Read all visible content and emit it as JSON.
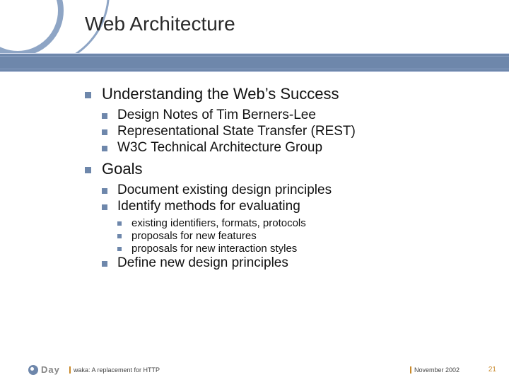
{
  "colors": {
    "accent": "#6e87ab",
    "accent_light": "#8ea5c5",
    "orange": "#c9892a",
    "background": "#ffffff",
    "text": "#111111",
    "logo_gray": "#868686"
  },
  "typography": {
    "font_family": "Verdana, Geneva, sans-serif",
    "title_fontsize": 28,
    "l1_fontsize": 22,
    "l2_fontsize": 19,
    "l3_fontsize": 15,
    "footer_fontsize": 9
  },
  "title": "Web Architecture",
  "bullets": [
    {
      "text": "Understanding the Web’s Success",
      "children": [
        {
          "text": "Design Notes of Tim Berners-Lee"
        },
        {
          "text": "Representational State Transfer (REST)"
        },
        {
          "text": "W3C Technical Architecture Group"
        }
      ]
    },
    {
      "text": "Goals",
      "children": [
        {
          "text": "Document existing design principles"
        },
        {
          "text": "Identify methods for evaluating",
          "children": [
            {
              "text": "existing identifiers, formats, protocols"
            },
            {
              "text": "proposals for new features"
            },
            {
              "text": "proposals for new interaction styles"
            }
          ]
        },
        {
          "text": "Define new design principles"
        }
      ]
    }
  ],
  "footer": {
    "logo": "Day",
    "talk": "waka: A replacement for HTTP",
    "date": "November 2002",
    "page": "21"
  }
}
